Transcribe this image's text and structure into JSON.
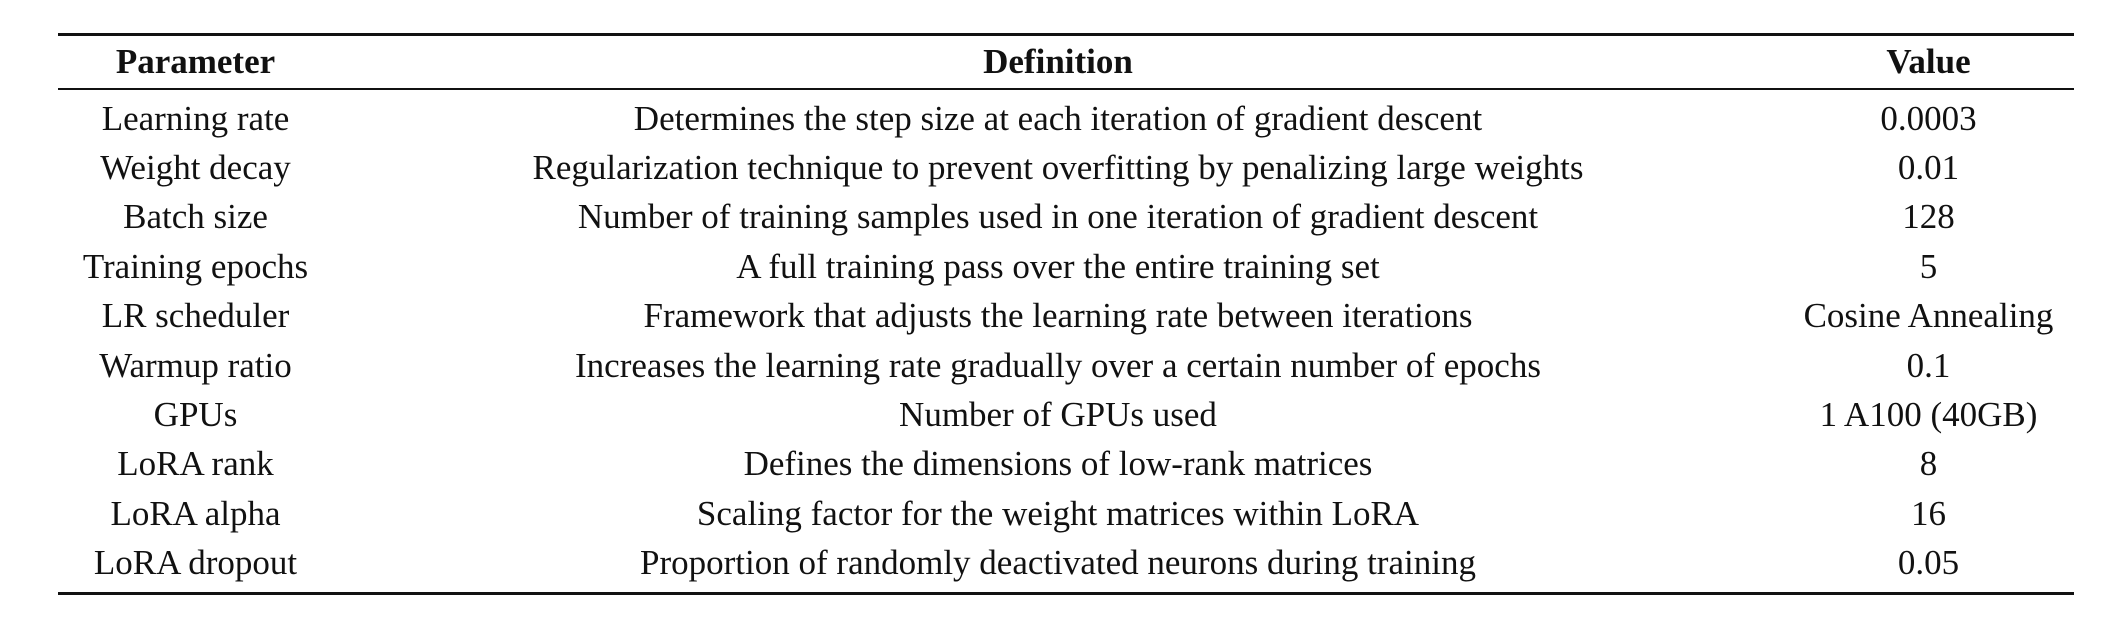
{
  "table": {
    "headers": [
      "Parameter",
      "Definition",
      "Value"
    ],
    "rows": [
      {
        "parameter": "Learning rate",
        "definition": "Determines the step size at each iteration of gradient descent",
        "value": "0.0003"
      },
      {
        "parameter": "Weight decay",
        "definition": "Regularization technique to prevent overfitting by penalizing large weights",
        "value": "0.01"
      },
      {
        "parameter": "Batch size",
        "definition": "Number of training samples used in one iteration of gradient descent",
        "value": "128"
      },
      {
        "parameter": "Training epochs",
        "definition": "A full training pass over the entire training set",
        "value": "5"
      },
      {
        "parameter": "LR scheduler",
        "definition": "Framework that adjusts the learning rate between iterations",
        "value": "Cosine Annealing"
      },
      {
        "parameter": "Warmup ratio",
        "definition": "Increases the learning rate gradually over a certain number of epochs",
        "value": "0.1"
      },
      {
        "parameter": "GPUs",
        "definition": "Number of GPUs used",
        "value": "1 A100 (40GB)"
      },
      {
        "parameter": "LoRA rank",
        "definition": "Defines the dimensions of low-rank matrices",
        "value": "8"
      },
      {
        "parameter": "LoRA alpha",
        "definition": "Scaling factor for the weight matrices within LoRA",
        "value": "16"
      },
      {
        "parameter": "LoRA dropout",
        "definition": "Proportion of randomly deactivated neurons during training",
        "value": "0.05"
      }
    ]
  }
}
